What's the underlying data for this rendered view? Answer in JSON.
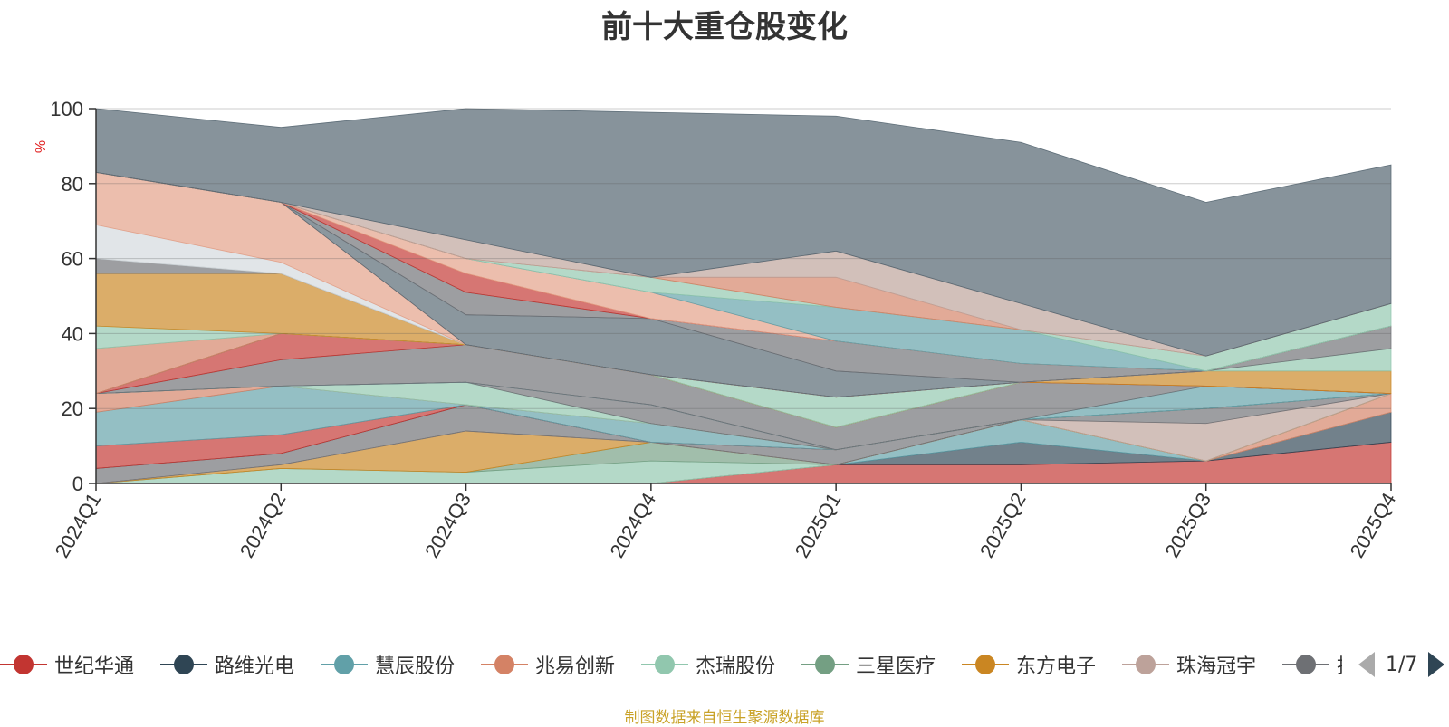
{
  "chart_data": {
    "type": "area",
    "title": "前十大重仓股变化",
    "ylabel": "%",
    "ylim": [
      0,
      100
    ],
    "yticks": [
      0,
      20,
      40,
      60,
      80,
      100
    ],
    "x": [
      "2024Q1",
      "2024Q2",
      "2024Q3",
      "2024Q4",
      "2025Q1",
      "2025Q2",
      "2025Q3",
      "2025Q4"
    ],
    "grid": true,
    "legend_position": "bottom",
    "series": [
      {
        "name": "世纪华通",
        "color": "#c23531",
        "values": [
          0,
          0,
          0,
          0,
          5,
          5,
          6,
          11
        ]
      },
      {
        "name": "路维光电",
        "color": "#2f4554",
        "values": [
          0,
          0,
          0,
          0,
          0,
          6,
          0,
          8
        ]
      },
      {
        "name": "慧辰股份",
        "color": "#61a0a8",
        "values": [
          0,
          0,
          0,
          0,
          0,
          6,
          0,
          0
        ]
      },
      {
        "name": "兆易创新",
        "color": "#d48265",
        "values": [
          0,
          0,
          0,
          0,
          0,
          0,
          0,
          5
        ]
      },
      {
        "name": "杰瑞股份",
        "color": "#91c7ae",
        "values": [
          0,
          4,
          3,
          6,
          0,
          0,
          0,
          0
        ]
      },
      {
        "name": "三星医疗",
        "color": "#749f83",
        "values": [
          0,
          0,
          0,
          5,
          0,
          0,
          0,
          0
        ]
      },
      {
        "name": "东方电子",
        "color": "#ca8622",
        "values": [
          0,
          1,
          11,
          0,
          0,
          0,
          0,
          0
        ]
      },
      {
        "name": "珠海冠宇",
        "color": "#bda29a",
        "values": [
          0,
          0,
          0,
          0,
          0,
          0,
          10,
          0
        ]
      },
      {
        "name": "",
        "color": "#6e7074",
        "values": [
          4,
          3,
          7,
          0,
          4,
          0,
          4,
          0
        ]
      },
      {
        "name": "",
        "color": "#546570",
        "values": [
          0,
          0,
          0,
          0,
          0,
          0,
          0,
          0
        ]
      },
      {
        "name": "",
        "color": "#c23531",
        "values": [
          6,
          5,
          0,
          0,
          0,
          0,
          0,
          0
        ]
      },
      {
        "name": "",
        "color": "#61a0a8",
        "values": [
          9,
          13,
          0,
          5,
          0,
          0,
          0,
          0
        ]
      },
      {
        "name": "",
        "color": "#d48265",
        "values": [
          5,
          0,
          0,
          0,
          0,
          0,
          0,
          0
        ]
      },
      {
        "name": "",
        "color": "#91c7ae",
        "values": [
          0,
          0,
          6,
          0,
          0,
          0,
          0,
          0
        ]
      },
      {
        "name": "",
        "color": "#6e7074",
        "values": [
          0,
          0,
          0,
          5,
          0,
          0,
          0,
          0
        ]
      },
      {
        "name": "",
        "color": "#61a0a8",
        "values": [
          0,
          0,
          0,
          0,
          0,
          0,
          6,
          0
        ]
      },
      {
        "name": "",
        "color": "#6e7074",
        "values": [
          0,
          7,
          10,
          8,
          6,
          10,
          0,
          0
        ]
      },
      {
        "name": "",
        "color": "#c23531",
        "values": [
          0,
          7,
          0,
          0,
          0,
          0,
          0,
          0
        ]
      },
      {
        "name": "",
        "color": "#ca8622",
        "values": [
          0,
          0,
          0,
          0,
          0,
          0,
          4,
          6
        ]
      },
      {
        "name": "",
        "color": "#91c7ae",
        "values": [
          0,
          0,
          0,
          0,
          8,
          0,
          0,
          6
        ]
      },
      {
        "name": "",
        "color": "#6e7074",
        "values": [
          0,
          0,
          0,
          0,
          0,
          0,
          0,
          6
        ]
      },
      {
        "name": "",
        "color": "#d48265",
        "values": [
          12,
          0,
          0,
          0,
          0,
          0,
          0,
          0
        ]
      },
      {
        "name": "",
        "color": "#91c7ae",
        "values": [
          6,
          0,
          0,
          0,
          0,
          0,
          0,
          0
        ]
      },
      {
        "name": "",
        "color": "#ca8622",
        "values": [
          14,
          16,
          0,
          0,
          0,
          0,
          0,
          0
        ]
      },
      {
        "name": "",
        "color": "#6e7074",
        "values": [
          4,
          0,
          0,
          0,
          0,
          0,
          0,
          0
        ]
      },
      {
        "name": "",
        "color": "#d3d9dd",
        "values": [
          9,
          3,
          0,
          0,
          0,
          0,
          0,
          0
        ]
      },
      {
        "name": "",
        "color": "#e39f86",
        "values": [
          14,
          16,
          0,
          0,
          0,
          0,
          0,
          0
        ]
      },
      {
        "name": "",
        "color": "#546570",
        "values": [
          0,
          0,
          8,
          15,
          7,
          0,
          0,
          0
        ]
      },
      {
        "name": "",
        "color": "#6e7074",
        "values": [
          0,
          0,
          6,
          0,
          8,
          5,
          0,
          0
        ]
      },
      {
        "name": "",
        "color": "#c23531",
        "values": [
          0,
          0,
          5,
          0,
          0,
          0,
          0,
          0
        ]
      },
      {
        "name": "",
        "color": "#e39f86",
        "values": [
          0,
          0,
          4,
          7,
          0,
          0,
          0,
          0
        ]
      },
      {
        "name": "",
        "color": "#61a0a8",
        "values": [
          0,
          0,
          0,
          0,
          9,
          9,
          0,
          0
        ]
      },
      {
        "name": "",
        "color": "#91c7ae",
        "values": [
          0,
          0,
          0,
          4,
          0,
          0,
          4,
          6
        ]
      },
      {
        "name": "",
        "color": "#d48265",
        "values": [
          0,
          0,
          0,
          0,
          8,
          0,
          0,
          0
        ]
      },
      {
        "name": "",
        "color": "#bda29a",
        "values": [
          0,
          0,
          5,
          0,
          7,
          7,
          0,
          0
        ]
      },
      {
        "name": "",
        "color": "#546570",
        "values": [
          17,
          20,
          35,
          44,
          36,
          43,
          41,
          37
        ]
      }
    ]
  },
  "legend": {
    "items": [
      {
        "label": "世纪华通",
        "color": "#c23531"
      },
      {
        "label": "路维光电",
        "color": "#2f4554"
      },
      {
        "label": "慧辰股份",
        "color": "#61a0a8"
      },
      {
        "label": "兆易创新",
        "color": "#d48265"
      },
      {
        "label": "杰瑞股份",
        "color": "#91c7ae"
      },
      {
        "label": "三星医疗",
        "color": "#749f83"
      },
      {
        "label": "东方电子",
        "color": "#ca8622"
      },
      {
        "label": "珠海冠宇",
        "color": "#bda29a"
      },
      {
        "label": "拓",
        "color": "#6e7074"
      }
    ],
    "pager_text": "1/7"
  },
  "footer": {
    "source": "制图数据来自恒生聚源数据库"
  }
}
